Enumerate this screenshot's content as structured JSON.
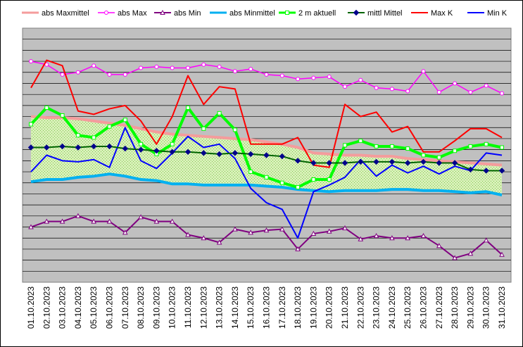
{
  "chart_data": {
    "type": "line",
    "title": "",
    "xlabel": "",
    "ylabel": "",
    "grid": true,
    "legend_position": "top",
    "categories": [
      "01.10.2023",
      "02.10.2023",
      "03.10.2023",
      "04.10.2023",
      "05.10.2023",
      "06.10.2023",
      "07.10.2023",
      "08.10.2023",
      "09.10.2023",
      "10.10.2023",
      "11.10.2023",
      "12.10.2023",
      "13.10.2023",
      "14.10.2023",
      "15.10.2023",
      "16.10.2023",
      "17.10.2023",
      "18.10.2023",
      "19.10.2023",
      "20.10.2023",
      "21.10.2023",
      "22.10.2023",
      "23.10.2023",
      "24.10.2023",
      "25.10.2023",
      "26.10.2023",
      "27.10.2023",
      "28.10.2023",
      "29.10.2023",
      "30.10.2023",
      "31.10.2023"
    ],
    "ylim": [
      0,
      23
    ],
    "fill_between": [
      "abs Minmittel",
      "abs Maxmittel"
    ],
    "series": [
      {
        "name": "abs Maxmittel",
        "color": "#F49C9C",
        "marker": "none",
        "width": 4,
        "values": [
          15.0,
          14.9,
          14.9,
          14.8,
          14.6,
          14.4,
          14.2,
          13.9,
          13.6,
          13.4,
          13.3,
          13.2,
          13.1,
          13.0,
          12.9,
          12.7,
          12.5,
          12.2,
          11.7,
          11.6,
          11.5,
          11.5,
          11.4,
          11.4,
          11.2,
          11.1,
          11.0,
          10.9,
          10.8,
          10.7,
          10.6
        ]
      },
      {
        "name": "abs Max",
        "color": "#FF00FF",
        "marker": "circle-open",
        "width": 1.5,
        "values": [
          20.0,
          19.7,
          18.8,
          19.0,
          19.6,
          18.8,
          18.8,
          19.4,
          19.5,
          19.4,
          19.4,
          19.7,
          19.5,
          19.1,
          19.3,
          18.8,
          18.7,
          18.4,
          18.5,
          18.6,
          17.7,
          18.3,
          17.6,
          17.5,
          17.3,
          19.1,
          17.2,
          18.0,
          17.2,
          17.8,
          17.1
        ]
      },
      {
        "name": "abs Min",
        "color": "#800080",
        "marker": "triangle-open",
        "width": 2,
        "values": [
          5.0,
          5.5,
          5.5,
          6.0,
          5.5,
          5.5,
          4.5,
          5.9,
          5.5,
          5.5,
          4.3,
          4.0,
          3.6,
          4.8,
          4.5,
          4.7,
          4.8,
          3.0,
          4.4,
          4.6,
          4.9,
          3.9,
          4.2,
          4.0,
          4.0,
          4.2,
          3.3,
          2.2,
          2.6,
          3.8,
          2.5
        ]
      },
      {
        "name": "abs Minmittel",
        "color": "#00B0F0",
        "marker": "none",
        "width": 4,
        "values": [
          9.1,
          9.3,
          9.3,
          9.5,
          9.6,
          9.8,
          9.6,
          9.3,
          9.2,
          8.9,
          8.9,
          8.8,
          8.8,
          8.8,
          8.8,
          8.7,
          8.6,
          8.4,
          8.3,
          8.2,
          8.3,
          8.3,
          8.3,
          8.4,
          8.4,
          8.3,
          8.3,
          8.2,
          8.1,
          8.2,
          7.9
        ]
      },
      {
        "name": "2 m aktuell",
        "color": "#00FF00",
        "marker": "square-open",
        "width": 4,
        "values": [
          14.3,
          15.8,
          15.1,
          13.3,
          13.1,
          14.1,
          14.7,
          12.5,
          11.6,
          12.5,
          15.8,
          13.9,
          15.3,
          13.8,
          10.0,
          9.5,
          9.0,
          8.6,
          9.3,
          9.3,
          12.4,
          12.8,
          12.3,
          12.3,
          12.1,
          11.5,
          11.3,
          11.9,
          12.3,
          12.5,
          12.2
        ]
      },
      {
        "name": "mittl Mittel",
        "color": "#006400",
        "marker": "diamond",
        "width": 2,
        "values": [
          12.2,
          12.2,
          12.3,
          12.2,
          12.3,
          12.3,
          12.1,
          12.0,
          11.9,
          11.8,
          11.8,
          11.7,
          11.6,
          11.7,
          11.6,
          11.5,
          11.4,
          11.0,
          10.8,
          10.8,
          10.8,
          10.9,
          10.9,
          10.9,
          10.8,
          10.9,
          10.8,
          10.8,
          10.2,
          10.1,
          10.1
        ]
      },
      {
        "name": "Max K",
        "color": "#FF0000",
        "marker": "none",
        "width": 2,
        "values": [
          17.6,
          20.1,
          19.6,
          15.5,
          15.2,
          15.7,
          16.0,
          14.6,
          12.5,
          15.0,
          18.7,
          16.1,
          17.7,
          17.5,
          12.5,
          12.5,
          12.5,
          13.1,
          10.6,
          10.4,
          16.1,
          15.0,
          15.4,
          13.6,
          14.1,
          11.8,
          11.8,
          12.8,
          13.9,
          13.9,
          13.1
        ]
      },
      {
        "name": "Min K",
        "color": "#0000FF",
        "marker": "none",
        "width": 2,
        "values": [
          10.0,
          11.5,
          11.0,
          10.9,
          11.1,
          10.4,
          14.0,
          11.0,
          10.3,
          11.7,
          13.2,
          12.2,
          12.5,
          11.2,
          8.5,
          7.2,
          6.6,
          4.0,
          8.2,
          8.8,
          9.5,
          11.1,
          9.6,
          10.6,
          9.9,
          10.5,
          9.8,
          10.5,
          10.1,
          11.7,
          11.5
        ]
      }
    ]
  }
}
